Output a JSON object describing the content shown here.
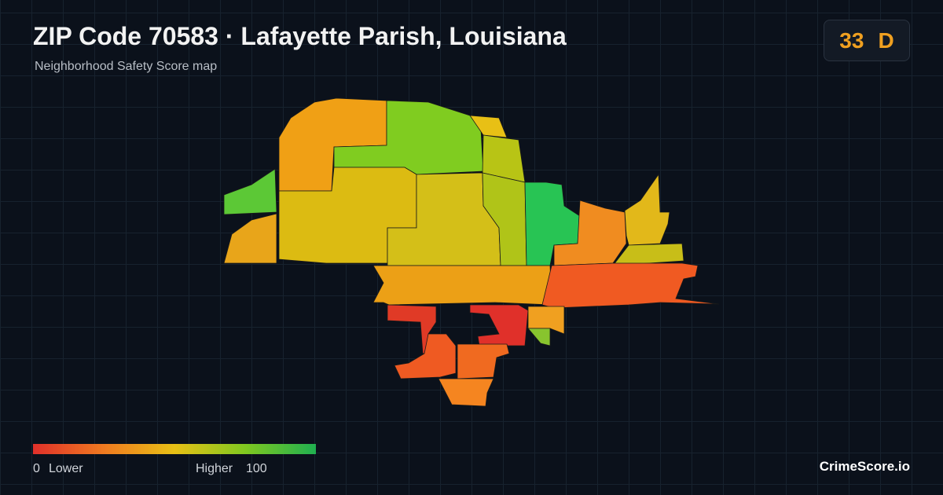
{
  "header": {
    "title": "ZIP Code 70583 · Lafayette Parish, Louisiana",
    "subtitle": "Neighborhood Safety Score map"
  },
  "score": {
    "value": 33,
    "grade": "D"
  },
  "legend": {
    "min": 0,
    "min_label": "Lower",
    "max_label": "Higher",
    "max": 100
  },
  "footer": {
    "brand": "CrimeScore.io"
  }
}
